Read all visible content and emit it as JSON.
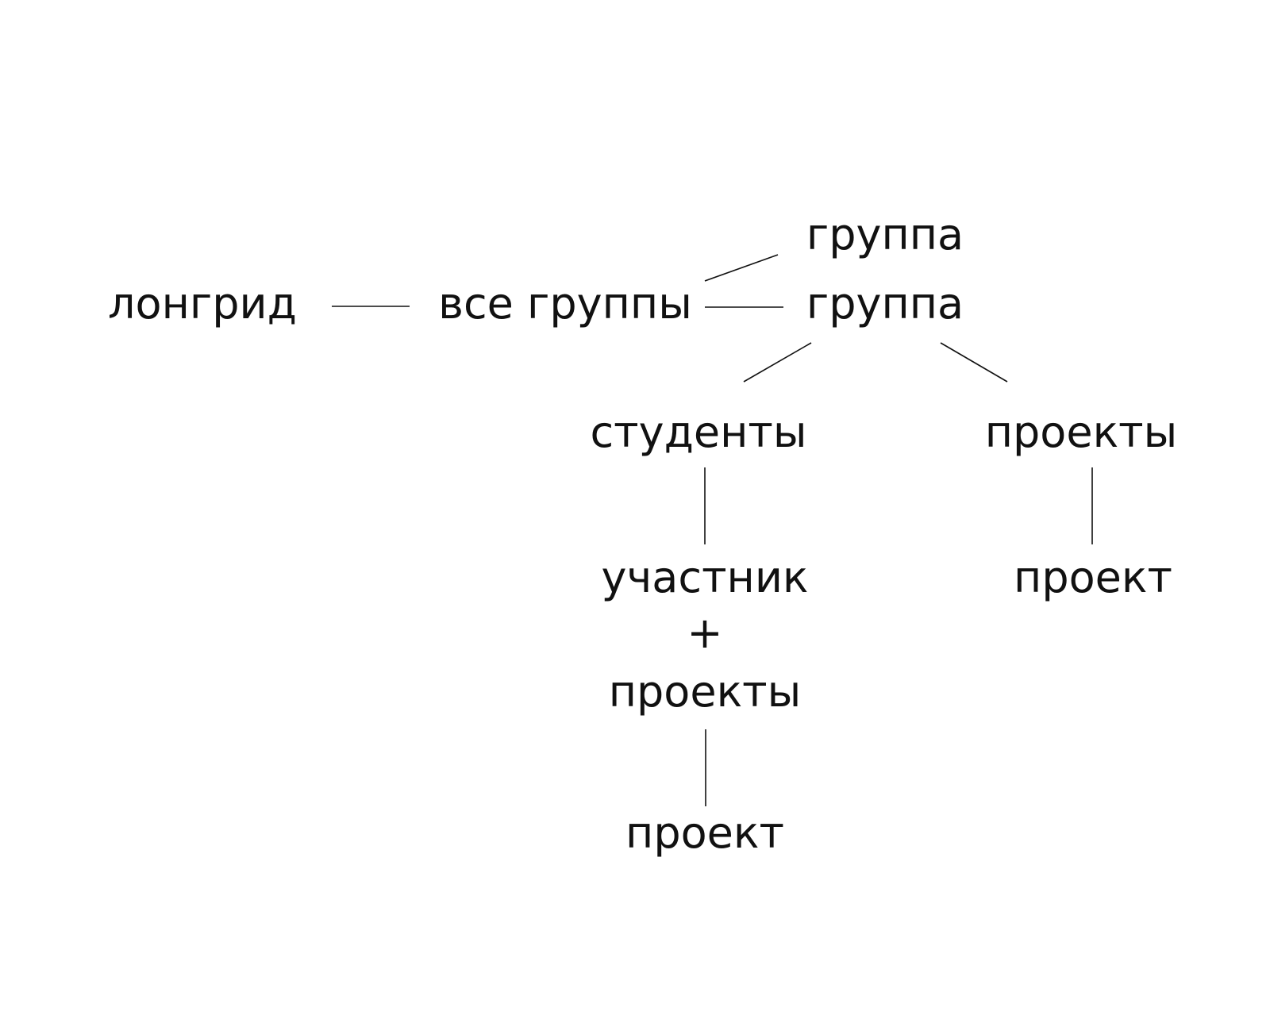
{
  "diagram": {
    "type": "tree",
    "nodes": {
      "longread": "лонгрид",
      "all_groups": "все группы",
      "group_1": "группа",
      "group_2": "группа",
      "students": "студенты",
      "projects_right": "проекты",
      "participant": "участник",
      "plus": "+",
      "participant_projects": "проекты",
      "project_left": "проект",
      "project_right": "проект"
    },
    "edges": [
      [
        "longread",
        "all_groups"
      ],
      [
        "all_groups",
        "group_1"
      ],
      [
        "all_groups",
        "group_2"
      ],
      [
        "group_2",
        "students"
      ],
      [
        "group_2",
        "projects_right"
      ],
      [
        "students",
        "participant"
      ],
      [
        "participant_projects",
        "project_left"
      ],
      [
        "projects_right",
        "project_right"
      ]
    ]
  }
}
